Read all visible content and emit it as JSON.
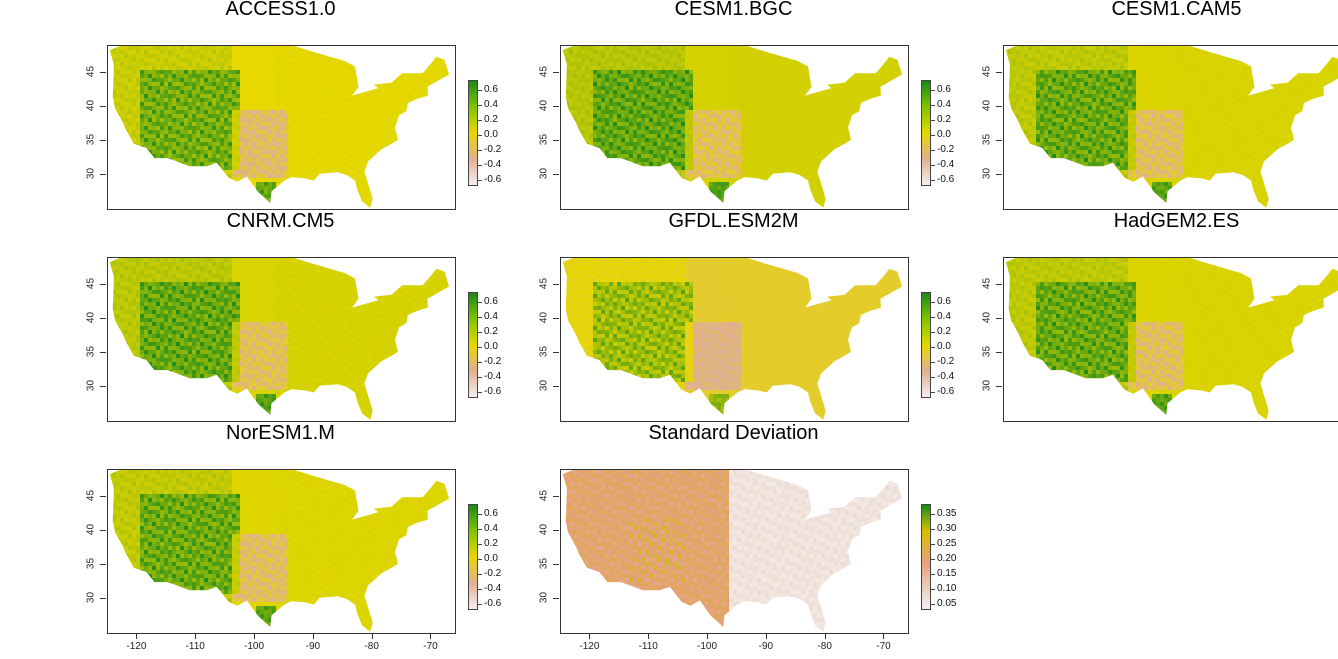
{
  "panels": [
    {
      "title": "ACCESS1.0",
      "palette": "anomaly",
      "bias": 0.0
    },
    {
      "title": "CESM1.BGC",
      "palette": "anomaly",
      "bias": 0.05
    },
    {
      "title": "CESM1.CAM5",
      "palette": "anomaly",
      "bias": 0.03
    },
    {
      "title": "CNRM.CM5",
      "palette": "anomaly",
      "bias": 0.04
    },
    {
      "title": "GFDL.ESM2M",
      "palette": "anomaly",
      "bias": -0.12
    },
    {
      "title": "HadGEM2.ES",
      "palette": "anomaly",
      "bias": 0.03
    },
    {
      "title": "NorESM1.M",
      "palette": "anomaly",
      "bias": 0.02
    },
    {
      "title": "Standard Deviation",
      "palette": "sd",
      "bias": 0.0
    }
  ],
  "y_axis": {
    "ticks": [
      "30",
      "35",
      "40",
      "45"
    ],
    "range": [
      25,
      49
    ]
  },
  "x_axis": {
    "ticks": [
      "-120",
      "-110",
      "-100",
      "-90",
      "-80",
      "-70"
    ],
    "range": [
      -125,
      -66
    ]
  },
  "legends": {
    "anomaly": {
      "labels": [
        "0.6",
        "0.4",
        "0.2",
        "0.0",
        "-0.2",
        "-0.4",
        "-0.6"
      ],
      "range": [
        -0.7,
        0.7
      ]
    },
    "sd": {
      "labels": [
        "0.35",
        "0.30",
        "0.25",
        "0.20",
        "0.15",
        "0.10",
        "0.05"
      ],
      "range": [
        0.02,
        0.37
      ]
    }
  },
  "colors": {
    "anomaly_high": "#1a8a1a",
    "anomaly_mid": "#e6d800",
    "anomaly_low": "#f5eef0",
    "sd_high": "#1a8a1a",
    "sd_mid": "#e6a07a",
    "sd_low": "#f2f2f2"
  }
}
